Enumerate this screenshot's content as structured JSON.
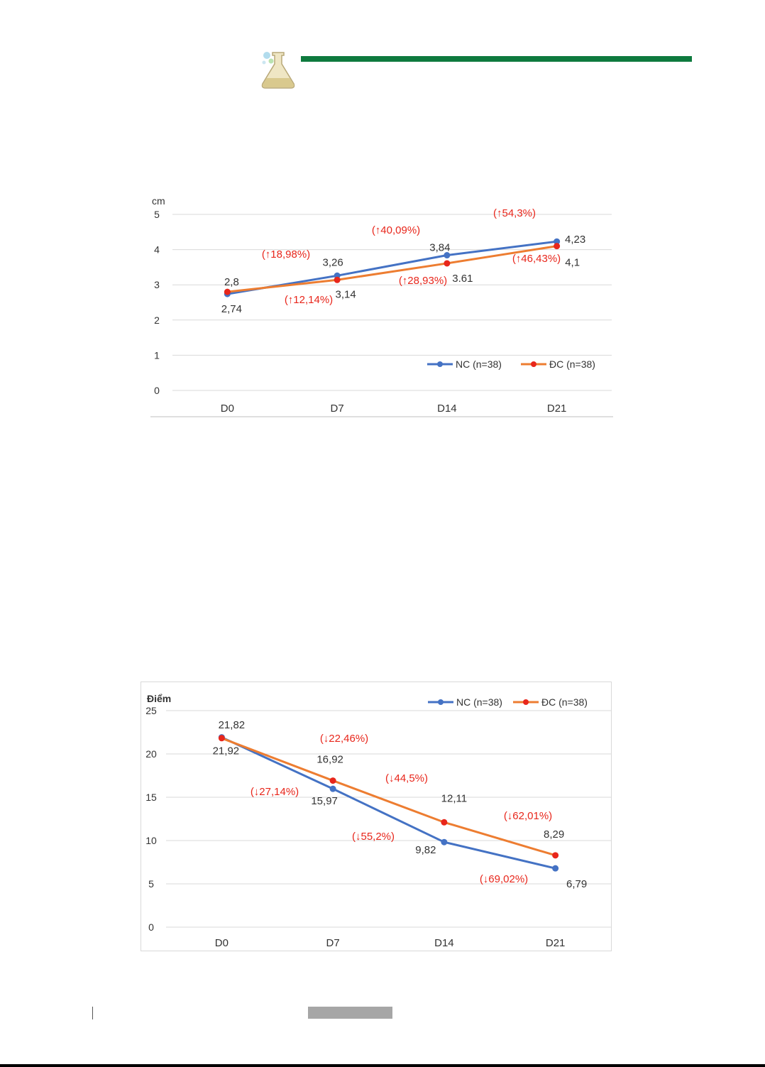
{
  "header": {
    "icon": "flask-icon",
    "bar_color": "#0e7a3e"
  },
  "colors": {
    "nc": "#4472c4",
    "dc": "#ed7d31",
    "dc_marker": "#e8261b",
    "annotation": "#e8261b",
    "grid": "#d9d9d9"
  },
  "chart_data": [
    {
      "type": "line",
      "title": "",
      "ylabel": "cm",
      "xlabel": "",
      "categories": [
        "D0",
        "D7",
        "D14",
        "D21"
      ],
      "ylim": [
        0,
        5
      ],
      "yticks": [
        "0",
        "1",
        "2",
        "3",
        "4",
        "5"
      ],
      "grid": true,
      "legend_position": "bottom-right",
      "series": [
        {
          "name": "NC (n=38)",
          "values": [
            2.74,
            3.26,
            3.84,
            4.23
          ],
          "labels": [
            "2,74",
            "3,26",
            "3,84",
            "4,23"
          ]
        },
        {
          "name": "ĐC (n=38)",
          "values": [
            2.8,
            3.14,
            3.61,
            4.1
          ],
          "labels": [
            "2,8",
            "3,14",
            "3.61",
            "4,1"
          ]
        }
      ],
      "annotations": [
        "(↑18,98%)",
        "(↑40,09%)",
        "(↑54,3%)",
        "(↑12,14%)",
        "(↑28,93%)",
        "(↑46,43%)"
      ]
    },
    {
      "type": "line",
      "title": "",
      "ylabel": "Điểm",
      "xlabel": "",
      "categories": [
        "D0",
        "D7",
        "D14",
        "D21"
      ],
      "ylim": [
        0,
        25
      ],
      "yticks": [
        "0",
        "5",
        "10",
        "15",
        "20",
        "25"
      ],
      "grid": true,
      "legend_position": "top-right",
      "series": [
        {
          "name": "NC (n=38)",
          "values": [
            21.92,
            15.97,
            9.82,
            6.79
          ],
          "labels": [
            "21,92",
            "15,97",
            "9,82",
            "6,79"
          ]
        },
        {
          "name": "ĐC (n=38)",
          "values": [
            21.82,
            16.92,
            12.11,
            8.29
          ],
          "labels": [
            "21,82",
            "16,92",
            "12,11",
            "8,29"
          ]
        }
      ],
      "annotations": [
        "(↓22,46%)",
        "(↓44,5%)",
        "(↓62,01%)",
        "(↓27,14%)",
        "(↓55,2%)",
        "(↓69,02%)"
      ]
    }
  ]
}
